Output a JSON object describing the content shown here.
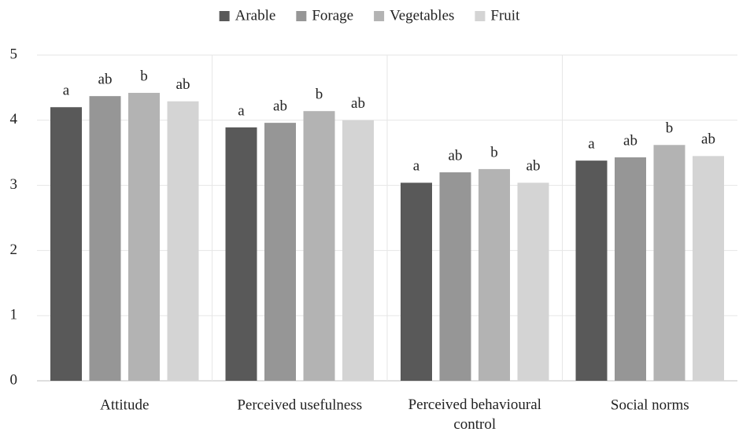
{
  "chart_data": {
    "type": "bar",
    "categories": [
      "Attitude",
      "Perceived usefulness",
      "Perceived behavioural control",
      "Social norms"
    ],
    "series": [
      {
        "name": "Arable",
        "color": "#595959",
        "values": [
          4.2,
          3.89,
          3.04,
          3.38
        ],
        "labels": [
          "a",
          "a",
          "a",
          "a"
        ]
      },
      {
        "name": "Forage",
        "color": "#969696",
        "values": [
          4.37,
          3.96,
          3.2,
          3.43
        ],
        "labels": [
          "ab",
          "ab",
          "ab",
          "ab"
        ]
      },
      {
        "name": "Vegetables",
        "color": "#b3b3b3",
        "values": [
          4.42,
          4.14,
          3.25,
          3.62
        ],
        "labels": [
          "b",
          "b",
          "b",
          "b"
        ]
      },
      {
        "name": "Fruit",
        "color": "#d4d4d4",
        "values": [
          4.29,
          4.0,
          3.04,
          3.45
        ],
        "labels": [
          "ab",
          "ab",
          "ab",
          "ab"
        ]
      }
    ],
    "ylim": [
      0,
      5
    ],
    "yticks": [
      0,
      1,
      2,
      3,
      4,
      5
    ],
    "grid": true,
    "legend": "top"
  }
}
